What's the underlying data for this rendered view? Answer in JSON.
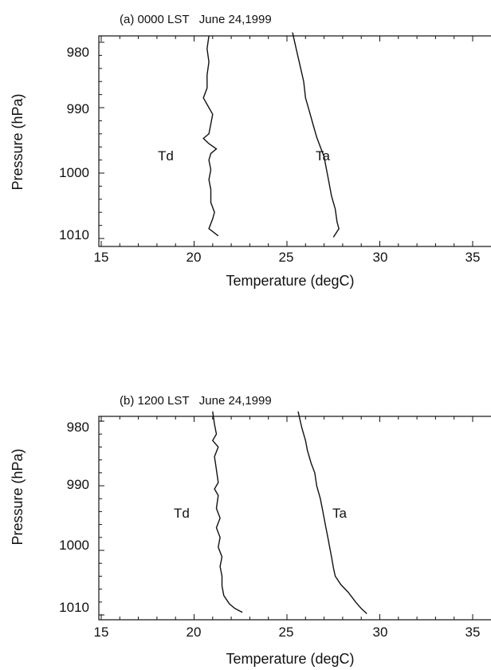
{
  "chart_data": [
    {
      "type": "line",
      "title": "(a) 0000 LST   June 24,1999",
      "xlabel": "Temperature (degC)",
      "ylabel": "Pressure (hPa)",
      "xlim": [
        15,
        35
      ],
      "ylim": [
        980,
        1010
      ],
      "y_inverted": true,
      "x_ticks": [
        15,
        20,
        25,
        30,
        35
      ],
      "x_tick_labels": [
        "15",
        "20",
        "25",
        "30",
        "35"
      ],
      "y_ticks": [
        980,
        990,
        1000,
        1010
      ],
      "y_tick_labels": [
        "980",
        "990",
        "1000",
        "1010"
      ],
      "grid": false,
      "series": [
        {
          "name": "Td",
          "points": [
            [
              20.8,
              979.0
            ],
            [
              20.7,
              981.0
            ],
            [
              20.8,
              983.0
            ],
            [
              20.7,
              985.0
            ],
            [
              20.7,
              987.0
            ],
            [
              20.5,
              988.5
            ],
            [
              20.8,
              990.0
            ],
            [
              21.0,
              991.0
            ],
            [
              20.9,
              992.5
            ],
            [
              20.8,
              994.0
            ],
            [
              20.5,
              994.7
            ],
            [
              20.8,
              995.5
            ],
            [
              21.2,
              996.3
            ],
            [
              20.9,
              997.0
            ],
            [
              20.8,
              998.0
            ],
            [
              20.9,
              999.5
            ],
            [
              20.8,
              1001.0
            ],
            [
              20.9,
              1002.5
            ],
            [
              20.9,
              1004.5
            ],
            [
              21.1,
              1006.0
            ],
            [
              21.0,
              1007.0
            ],
            [
              20.8,
              1008.5
            ],
            [
              21.3,
              1009.6
            ]
          ]
        },
        {
          "name": "Ta",
          "points": [
            [
              25.3,
              978.5
            ],
            [
              25.5,
              981.0
            ],
            [
              25.7,
              983.5
            ],
            [
              25.9,
              986.0
            ],
            [
              26.0,
              988.5
            ],
            [
              26.2,
              990.5
            ],
            [
              26.4,
              992.5
            ],
            [
              26.6,
              994.5
            ],
            [
              26.8,
              996.0
            ],
            [
              27.0,
              997.5
            ],
            [
              27.1,
              999.0
            ],
            [
              27.2,
              1000.5
            ],
            [
              27.3,
              1002.0
            ],
            [
              27.4,
              1003.5
            ],
            [
              27.6,
              1005.5
            ],
            [
              27.7,
              1007.5
            ],
            [
              27.8,
              1008.5
            ],
            [
              27.5,
              1009.8
            ]
          ]
        }
      ]
    },
    {
      "type": "line",
      "title": "(b) 1200 LST   June 24,1999",
      "xlabel": "Temperature (degC)",
      "ylabel": "Pressure (hPa)",
      "xlim": [
        15,
        35
      ],
      "ylim": [
        980,
        1010
      ],
      "y_inverted": true,
      "x_ticks": [
        15,
        20,
        25,
        30,
        35
      ],
      "x_tick_labels": [
        "15",
        "20",
        "25",
        "30",
        "35"
      ],
      "y_ticks": [
        980,
        990,
        1000,
        1010
      ],
      "y_tick_labels": [
        "980",
        "990",
        "1000",
        "1010"
      ],
      "grid": false,
      "series": [
        {
          "name": "Td",
          "points": [
            [
              21.0,
              978.5
            ],
            [
              21.1,
              980.5
            ],
            [
              21.2,
              982.0
            ],
            [
              21.0,
              983.0
            ],
            [
              21.3,
              984.0
            ],
            [
              21.1,
              985.5
            ],
            [
              21.2,
              987.5
            ],
            [
              21.3,
              989.5
            ],
            [
              21.1,
              990.5
            ],
            [
              21.3,
              991.5
            ],
            [
              21.2,
              993.5
            ],
            [
              21.4,
              995.0
            ],
            [
              21.2,
              996.5
            ],
            [
              21.4,
              998.0
            ],
            [
              21.3,
              999.5
            ],
            [
              21.5,
              1001.0
            ],
            [
              21.4,
              1002.5
            ],
            [
              21.5,
              1004.0
            ],
            [
              21.5,
              1005.5
            ],
            [
              21.6,
              1007.0
            ],
            [
              21.9,
              1008.3
            ],
            [
              22.2,
              1009.0
            ],
            [
              22.6,
              1009.6
            ]
          ]
        },
        {
          "name": "Ta",
          "points": [
            [
              25.6,
              978.5
            ],
            [
              25.8,
              981.0
            ],
            [
              26.0,
              983.0
            ],
            [
              26.1,
              984.5
            ],
            [
              26.3,
              986.5
            ],
            [
              26.5,
              988.0
            ],
            [
              26.6,
              990.0
            ],
            [
              26.8,
              992.0
            ],
            [
              26.9,
              993.5
            ],
            [
              27.0,
              995.0
            ],
            [
              27.1,
              996.5
            ],
            [
              27.2,
              998.0
            ],
            [
              27.3,
              999.5
            ],
            [
              27.4,
              1001.0
            ],
            [
              27.5,
              1002.7
            ],
            [
              27.6,
              1004.0
            ],
            [
              27.9,
              1005.3
            ],
            [
              28.3,
              1006.5
            ],
            [
              28.7,
              1008.0
            ],
            [
              29.0,
              1009.0
            ],
            [
              29.3,
              1009.8
            ]
          ]
        }
      ]
    }
  ]
}
